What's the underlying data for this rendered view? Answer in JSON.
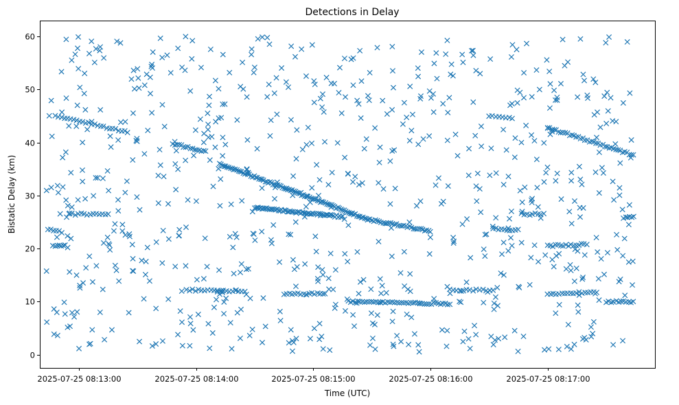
{
  "chart_data": {
    "type": "scatter",
    "title": "Detections in Delay",
    "xlabel": "Time (UTC)",
    "ylabel": "Bistatic Delay (km)",
    "x_unit": "time",
    "xlim": [
      "2025-07-25 08:12:40",
      "2025-07-25 08:17:55"
    ],
    "ylim": [
      -2.5,
      63
    ],
    "x_ticks": [
      "2025-07-25 08:13:00",
      "2025-07-25 08:14:00",
      "2025-07-25 08:15:00",
      "2025-07-25 08:16:00",
      "2025-07-25 08:17:00"
    ],
    "y_ticks": [
      0,
      10,
      20,
      30,
      40,
      50,
      60
    ],
    "marker": "x",
    "marker_color": "#1f77b4",
    "grid": false,
    "legend": "none",
    "tracks": [
      {
        "t_start": "2025-07-25 08:12:48",
        "t_end": "2025-07-25 08:13:25",
        "y_start": 45,
        "y_end": 42,
        "count": 25
      },
      {
        "t_start": "2025-07-25 08:13:48",
        "t_end": "2025-07-25 08:14:05",
        "y_start": 39.8,
        "y_end": 38.3,
        "count": 16
      },
      {
        "t_start": "2025-07-25 08:14:12",
        "t_end": "2025-07-25 08:15:28",
        "y_start": 36,
        "y_end": 25.5,
        "count": 95
      },
      {
        "t_start": "2025-07-25 08:15:28",
        "t_end": "2025-07-25 08:16:00",
        "y_start": 25.5,
        "y_end": 23.3,
        "count": 34
      },
      {
        "t_start": "2025-07-25 08:14:30",
        "t_end": "2025-07-25 08:15:15",
        "y_start": 27.7,
        "y_end": 26,
        "count": 60
      },
      {
        "t_start": "2025-07-25 08:16:30",
        "t_end": "2025-07-25 08:16:42",
        "y_start": 45,
        "y_end": 44.5,
        "count": 8
      },
      {
        "t_start": "2025-07-25 08:17:00",
        "t_end": "2025-07-25 08:17:44",
        "y_start": 42.8,
        "y_end": 37.6,
        "count": 40
      },
      {
        "t_start": "2025-07-25 08:12:44",
        "t_end": "2025-07-25 08:12:50",
        "y_start": 23.5,
        "y_end": 23.4,
        "count": 5
      },
      {
        "t_start": "2025-07-25 08:12:48",
        "t_end": "2025-07-25 08:12:52",
        "y_start": 20.5,
        "y_end": 20.6,
        "count": 5
      },
      {
        "t_start": "2025-07-25 08:12:55",
        "t_end": "2025-07-25 08:13:15",
        "y_start": 26.5,
        "y_end": 26.5,
        "count": 14
      },
      {
        "t_start": "2025-07-25 08:13:55",
        "t_end": "2025-07-25 08:14:25",
        "y_start": 12.2,
        "y_end": 12,
        "count": 20
      },
      {
        "t_start": "2025-07-25 08:14:45",
        "t_end": "2025-07-25 08:15:05",
        "y_start": 11.5,
        "y_end": 11.5,
        "count": 15
      },
      {
        "t_start": "2025-07-25 08:15:18",
        "t_end": "2025-07-25 08:16:10",
        "y_start": 10,
        "y_end": 9.6,
        "count": 45
      },
      {
        "t_start": "2025-07-25 08:16:10",
        "t_end": "2025-07-25 08:16:32",
        "y_start": 12.2,
        "y_end": 12.2,
        "count": 14
      },
      {
        "t_start": "2025-07-25 08:16:32",
        "t_end": "2025-07-25 08:16:45",
        "y_start": 23.7,
        "y_end": 23.5,
        "count": 10
      },
      {
        "t_start": "2025-07-25 08:16:48",
        "t_end": "2025-07-25 08:16:58",
        "y_start": 26.5,
        "y_end": 26.5,
        "count": 8
      },
      {
        "t_start": "2025-07-25 08:17:00",
        "t_end": "2025-07-25 08:17:20",
        "y_start": 20.5,
        "y_end": 20.8,
        "count": 16
      },
      {
        "t_start": "2025-07-25 08:17:00",
        "t_end": "2025-07-25 08:17:25",
        "y_start": 11.5,
        "y_end": 11.8,
        "count": 18
      },
      {
        "t_start": "2025-07-25 08:17:30",
        "t_end": "2025-07-25 08:17:44",
        "y_start": 10,
        "y_end": 10,
        "count": 12
      },
      {
        "t_start": "2025-07-25 08:17:40",
        "t_end": "2025-07-25 08:17:44",
        "y_start": 26,
        "y_end": 26,
        "count": 5
      }
    ],
    "clutter": {
      "t_start": "2025-07-25 08:12:43",
      "t_end": "2025-07-25 08:17:44",
      "y_range": [
        0.5,
        60
      ],
      "count": 780
    }
  }
}
